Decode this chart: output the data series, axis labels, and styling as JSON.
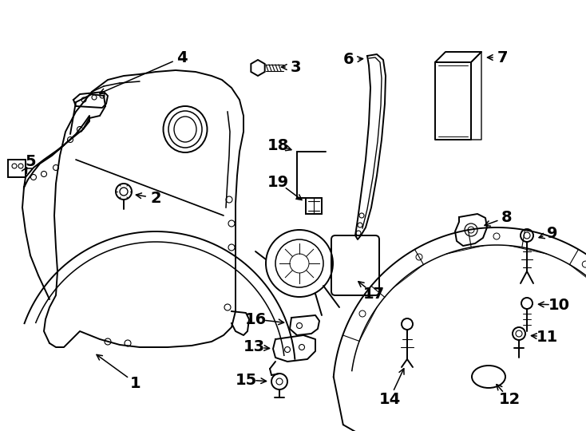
{
  "background_color": "#ffffff",
  "line_color": "#000000",
  "fig_width": 7.34,
  "fig_height": 5.4,
  "dpi": 100,
  "label_fontsize": 14,
  "label_fontweight": "bold"
}
